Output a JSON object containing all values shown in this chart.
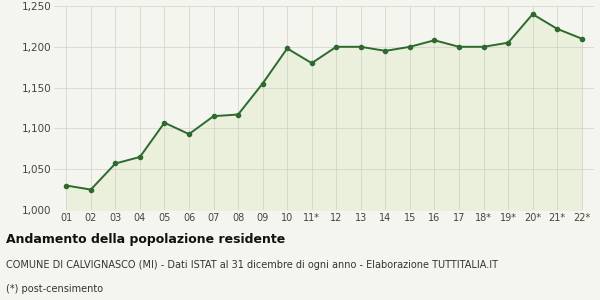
{
  "x_labels": [
    "01",
    "02",
    "03",
    "04",
    "05",
    "06",
    "07",
    "08",
    "09",
    "10",
    "11*",
    "12",
    "13",
    "14",
    "15",
    "16",
    "17",
    "18*",
    "19*",
    "20*",
    "21*",
    "22*"
  ],
  "y_values": [
    1030,
    1025,
    1057,
    1065,
    1107,
    1093,
    1115,
    1117,
    1155,
    1198,
    1180,
    1200,
    1200,
    1195,
    1200,
    1208,
    1200,
    1200,
    1205,
    1240,
    1222,
    1210
  ],
  "ylim": [
    1000,
    1250
  ],
  "yticks": [
    1000,
    1050,
    1100,
    1150,
    1200,
    1250
  ],
  "line_color": "#2d6a2d",
  "fill_color": "#eaf0dc",
  "bg_color": "#f5f5ef",
  "grid_color": "#d0d0c8",
  "marker_size": 3.0,
  "line_width": 1.4,
  "title_bold": "Andamento della popolazione residente",
  "subtitle1": "COMUNE DI CALVIGNASCO (MI) - Dati ISTAT al 31 dicembre di ogni anno - Elaborazione TUTTITALIA.IT",
  "subtitle2": "(*) post-censimento",
  "title_fontsize": 9.0,
  "subtitle_fontsize": 7.0,
  "tick_fontsize": 7.0,
  "ytick_fontsize": 7.5
}
